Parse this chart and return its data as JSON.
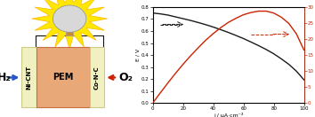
{
  "chart": {
    "j_values": [
      0,
      5,
      10,
      15,
      20,
      25,
      30,
      35,
      40,
      45,
      50,
      55,
      60,
      65,
      70,
      75,
      80,
      85,
      90,
      95,
      100
    ],
    "E_values": [
      0.75,
      0.743,
      0.733,
      0.718,
      0.703,
      0.688,
      0.671,
      0.653,
      0.633,
      0.611,
      0.588,
      0.563,
      0.537,
      0.508,
      0.478,
      0.446,
      0.41,
      0.368,
      0.322,
      0.265,
      0.193
    ],
    "P_values": [
      0.0,
      3.7,
      7.3,
      10.8,
      14.1,
      17.2,
      20.1,
      22.9,
      25.3,
      27.5,
      29.4,
      30.9,
      32.2,
      33.0,
      33.5,
      33.5,
      32.8,
      31.3,
      29.0,
      25.2,
      19.3
    ],
    "E_color": "#1a1a1a",
    "P_color": "#cc2200",
    "xlabel": "j / μA·cm⁻²",
    "ylabel_left": "E / V",
    "ylabel_right": "P / μW·cm⁻²",
    "xlim": [
      0,
      100
    ],
    "ylim_left": [
      0.0,
      0.8
    ],
    "ylim_right": [
      0,
      30
    ],
    "yticks_left": [
      0.0,
      0.1,
      0.2,
      0.3,
      0.4,
      0.5,
      0.6,
      0.7,
      0.8
    ],
    "yticks_right": [
      0,
      5,
      10,
      15,
      20,
      25,
      30
    ],
    "xticks": [
      0,
      20,
      40,
      60,
      80,
      100
    ]
  },
  "diagram": {
    "burst_color": "#FFE800",
    "burst_edge_color": "#FFB700",
    "bulb_color": "#D8D8D8",
    "bulb_edge_color": "#999999",
    "bulb_base_color": "#CC8833",
    "wire_color": "#111111",
    "box_electrode_color": "#f0f0c0",
    "box_electrode_edge": "#cccc88",
    "box_pem_color": "#e8a878",
    "box_pem_edge": "#c87040",
    "h2_color": "#2255cc",
    "o2_color": "#cc2200",
    "ni_cnt_label": "Ni-CNT",
    "co_nc_label": "Co-N-C",
    "pem_label": "PEM",
    "h2_label": "H₂",
    "o2_label": "O₂"
  }
}
